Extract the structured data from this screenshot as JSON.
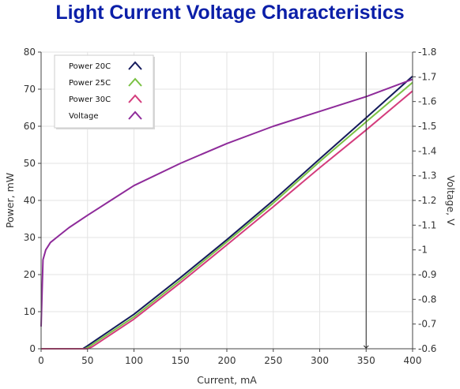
{
  "chart_data": {
    "type": "line",
    "title": "Light Current Voltage Characteristics",
    "xlabel": "Current, mA",
    "ylabel": "Power, mW",
    "y2label": "Voltage, V",
    "xlim": [
      0,
      400
    ],
    "ylim": [
      0,
      80
    ],
    "y2lim": [
      0.6,
      1.8
    ],
    "x_ticks": [
      0,
      50,
      100,
      150,
      200,
      250,
      300,
      350,
      400
    ],
    "y_ticks": [
      0,
      10,
      20,
      30,
      40,
      50,
      60,
      70,
      80
    ],
    "y2_ticks": [
      "0.6",
      "0.7",
      "0.8",
      "0.9",
      "1",
      "1.1",
      "1.2",
      "1.3",
      "1.4",
      "1.5",
      "1.6",
      "1.7",
      "1.8"
    ],
    "grid": true,
    "legend_position": "top-left",
    "marker_line_x": 350,
    "colors": {
      "title": "#0b1fa8",
      "power_20c": "#141a5c",
      "power_25c": "#7ac143",
      "power_30c": "#d43c7c",
      "voltage": "#8e2b9a",
      "marker_line": "#222222",
      "grid": "#e3e3e3"
    },
    "series": [
      {
        "name": "Power 20C",
        "axis": "left",
        "x": [
          0,
          45,
          50,
          100,
          150,
          200,
          250,
          300,
          350,
          400
        ],
        "y": [
          0,
          0,
          0.8,
          9.3,
          19.2,
          29.4,
          40.0,
          51.2,
          62.3,
          73.5
        ]
      },
      {
        "name": "Power 25C",
        "axis": "left",
        "x": [
          0,
          47,
          52,
          100,
          150,
          200,
          250,
          300,
          350,
          400
        ],
        "y": [
          0,
          0,
          0.6,
          8.6,
          18.5,
          28.8,
          39.3,
          50.5,
          61.2,
          71.8
        ]
      },
      {
        "name": "Power 30C",
        "axis": "left",
        "x": [
          0,
          50,
          55,
          100,
          150,
          200,
          250,
          300,
          350,
          400
        ],
        "y": [
          0,
          0,
          0.5,
          8.0,
          17.8,
          28.0,
          38.3,
          48.8,
          59.0,
          69.5
        ]
      },
      {
        "name": "Voltage",
        "axis": "right",
        "x": [
          0,
          2,
          5,
          10,
          20,
          30,
          50,
          75,
          100,
          150,
          200,
          250,
          300,
          350,
          400
        ],
        "y": [
          0.69,
          0.96,
          1.0,
          1.03,
          1.06,
          1.09,
          1.14,
          1.2,
          1.26,
          1.35,
          1.43,
          1.5,
          1.56,
          1.62,
          1.69
        ]
      }
    ]
  }
}
